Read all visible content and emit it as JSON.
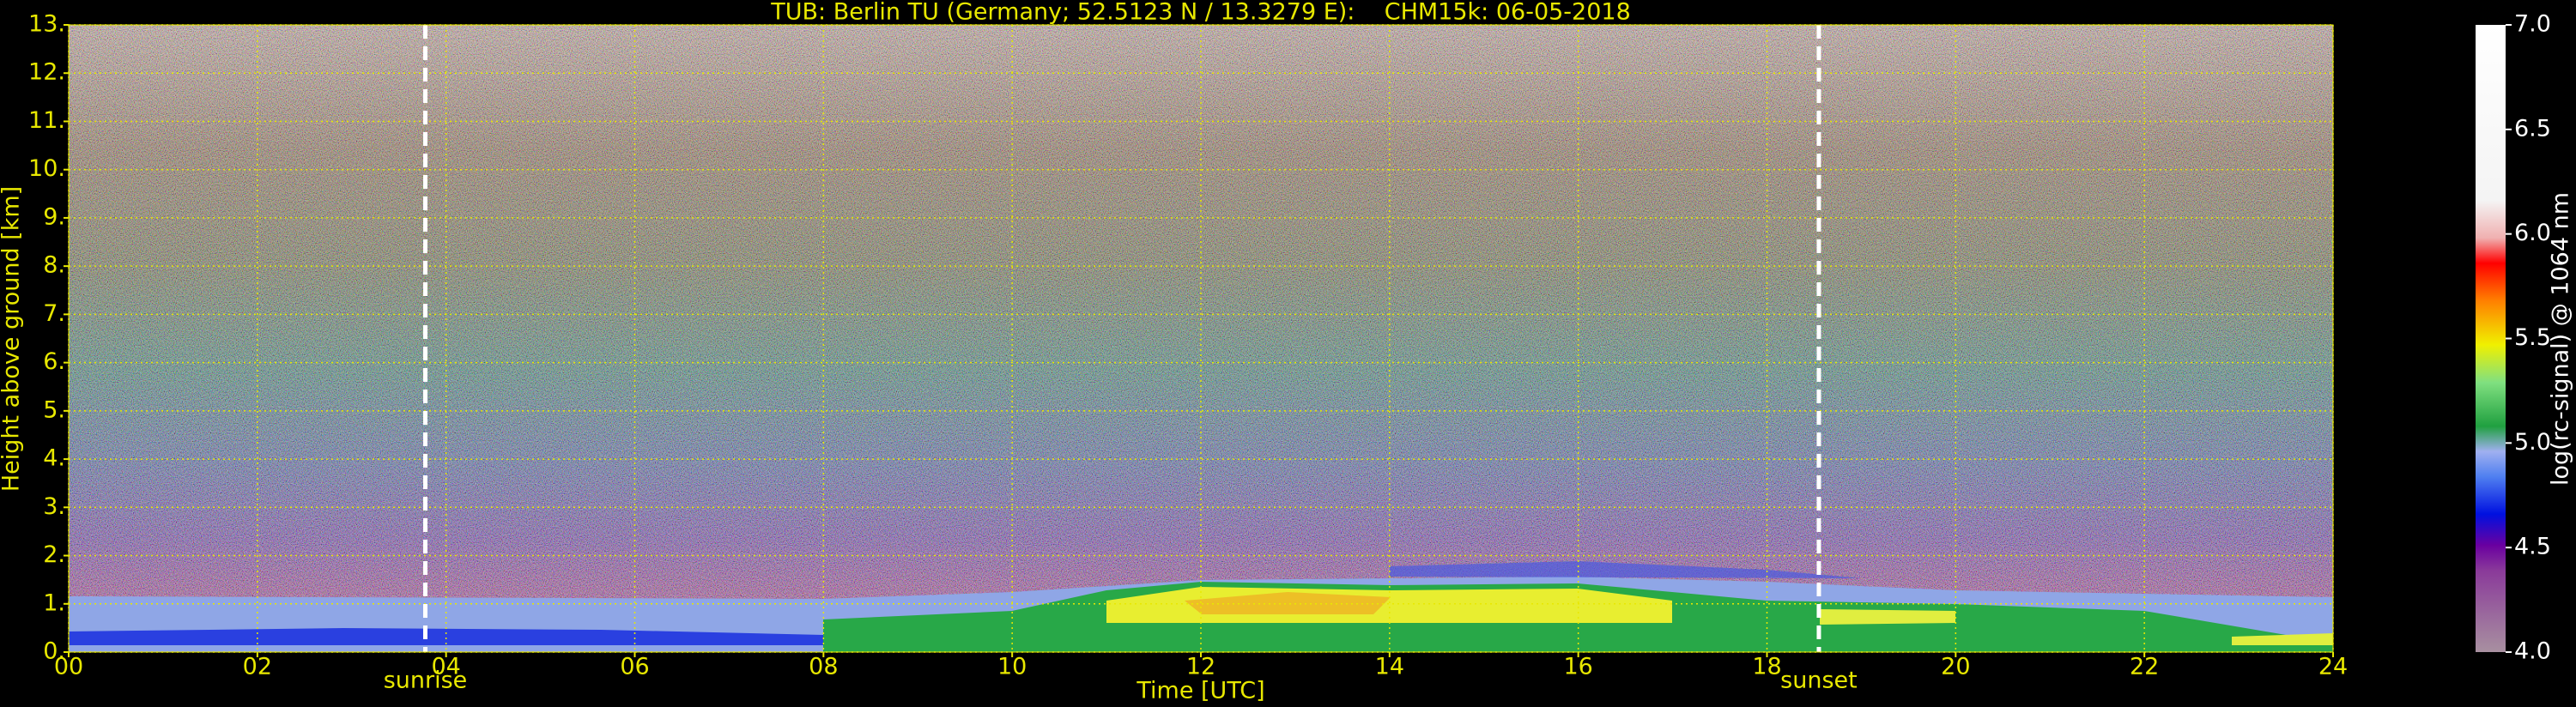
{
  "chart_data": {
    "type": "heatmap",
    "title": "TUB: Berlin TU (Germany; 52.5123 N / 13.3279 E):    CHM15k: 06-05-2018",
    "xlabel": "Time [UTC]",
    "ylabel": "Height above ground [km]",
    "xlim": [
      0,
      24
    ],
    "xticks": [
      {
        "value": 0,
        "label": "00"
      },
      {
        "value": 2,
        "label": "02"
      },
      {
        "value": 4,
        "label": "04"
      },
      {
        "value": 6,
        "label": "06"
      },
      {
        "value": 8,
        "label": "08"
      },
      10,
      12,
      14,
      16,
      18,
      20,
      22,
      24
    ],
    "ylim": [
      0,
      13
    ],
    "yticks": [
      {
        "value": 0,
        "label": "0."
      },
      {
        "value": 1,
        "label": "1."
      },
      {
        "value": 2,
        "label": "2."
      },
      {
        "value": 3,
        "label": "3."
      },
      {
        "value": 4,
        "label": "4."
      },
      {
        "value": 5,
        "label": "5."
      },
      {
        "value": 6,
        "label": "6."
      },
      {
        "value": 7,
        "label": "7."
      },
      {
        "value": 8,
        "label": "8."
      },
      {
        "value": 9,
        "label": "9."
      },
      {
        "value": 10,
        "label": "10."
      },
      {
        "value": 11,
        "label": "11."
      },
      {
        "value": 12,
        "label": "12."
      },
      {
        "value": 13,
        "label": "13."
      }
    ],
    "grid": true,
    "annotations": [
      {
        "label": "sunrise",
        "x": 3.78
      },
      {
        "label": "sunset",
        "x": 18.55
      }
    ],
    "colorbar": {
      "label": "log(rc-signal) @ 1064 nm",
      "lim": [
        4,
        7
      ],
      "ticks": [
        {
          "value": 4,
          "label": "4.0"
        },
        {
          "value": 4.5,
          "label": "4.5"
        },
        {
          "value": 5,
          "label": "5.0"
        },
        {
          "value": 5.5,
          "label": "5.5"
        },
        {
          "value": 6,
          "label": "6.0"
        },
        {
          "value": 6.5,
          "label": "6.5"
        },
        {
          "value": 7,
          "label": "7.0"
        }
      ]
    }
  }
}
